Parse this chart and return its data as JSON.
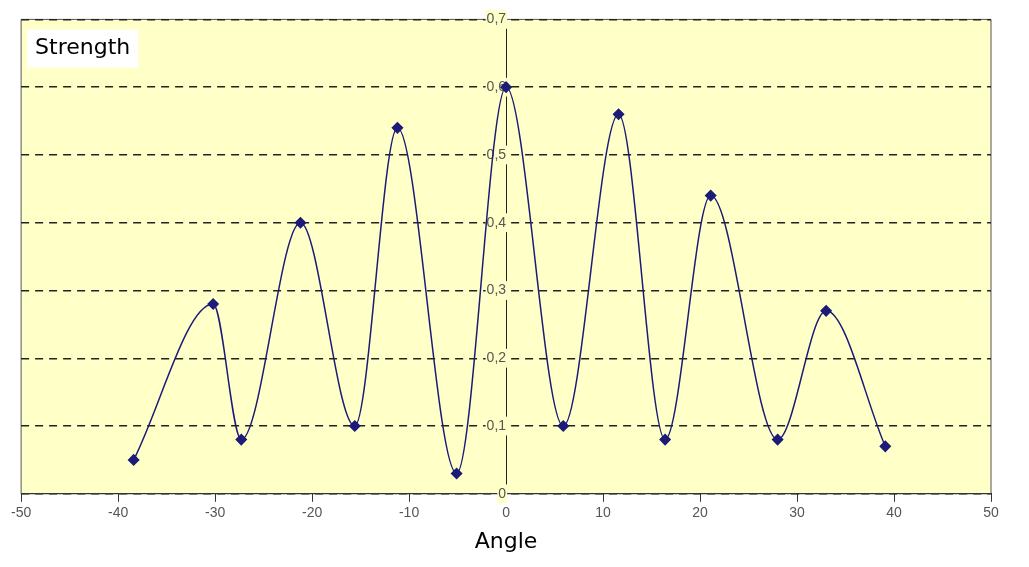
{
  "chart_data": {
    "type": "line",
    "xlabel": "Angle",
    "ylabel": "Strength",
    "x": [
      -38.4,
      -30.2,
      -27.3,
      -21.2,
      -15.6,
      -11.2,
      -5.1,
      0,
      5.9,
      11.6,
      16.4,
      21.1,
      28.0,
      33.0,
      39.1
    ],
    "series": [
      {
        "color": "#1c1c78",
        "values": [
          0.05,
          0.28,
          0.08,
          0.4,
          0.1,
          0.54,
          0.03,
          0.6,
          0.1,
          0.56,
          0.08,
          0.44,
          0.08,
          0.27,
          0.07
        ]
      }
    ],
    "xlim": [
      -50,
      50
    ],
    "xticks": [
      -50,
      -40,
      -30,
      -20,
      -10,
      0,
      10,
      20,
      30,
      40,
      50
    ],
    "ylim": [
      0,
      0.7
    ],
    "yticks": [
      {
        "value": 0,
        "label": "0"
      },
      {
        "value": 0.1,
        "label": "0,1"
      },
      {
        "value": 0.2,
        "label": "0,2"
      },
      {
        "value": 0.3,
        "label": "0,3"
      },
      {
        "value": 0.4,
        "label": "0,4"
      },
      {
        "value": 0.5,
        "label": "0,5"
      },
      {
        "value": 0.6,
        "label": "0,6"
      },
      {
        "value": 0.7,
        "label": "0,7"
      }
    ],
    "grid": "y",
    "legend": false,
    "marker": "diamond",
    "line_style": "solid"
  }
}
